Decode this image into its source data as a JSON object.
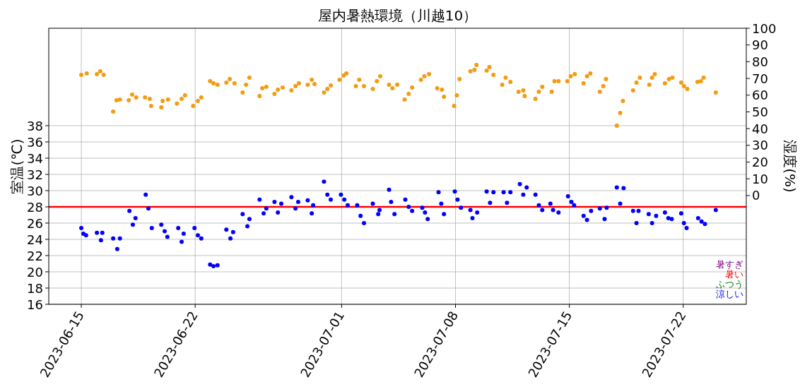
{
  "chart_data": {
    "type": "scatter",
    "title": "屋内暑熱環境（川越10）",
    "ylabel": "室温(℃)",
    "y2label": "湿度(%)",
    "xlim": [
      "2023-06-13",
      "2023-07-25T21:00"
    ],
    "xticks": [
      "2023-06-15",
      "2023-06-22",
      "2023-07-01",
      "2023-07-08",
      "2023-07-15",
      "2023-07-22"
    ],
    "ylim": [
      16,
      50
    ],
    "yticks": [
      16,
      18,
      20,
      22,
      24,
      26,
      28,
      30,
      32,
      34,
      36,
      38
    ],
    "y2lim": [
      -65,
      100
    ],
    "y2ticks": [
      0,
      10,
      20,
      30,
      40,
      50,
      60,
      70,
      80,
      90,
      100
    ],
    "grid": true,
    "marker": "circle",
    "ref_lines": [
      {
        "axis": "y",
        "value": 28,
        "color": "#ff0000",
        "line_style": "solid"
      }
    ],
    "annotations": [
      "暑すぎ",
      "暑い",
      "ふつう",
      "涼しい"
    ],
    "series": [
      {
        "color": "#0000ff",
        "x": [
          "2023-06-15T00:00",
          "2023-06-15T03:00",
          "2023-06-15T07:00",
          "2023-06-15T23:00",
          "2023-06-16T05:00",
          "2023-06-16T07:00",
          "2023-06-16T23:00",
          "2023-06-17T05:00",
          "2023-06-17T09:00",
          "2023-06-17T23:00",
          "2023-06-18T04:00",
          "2023-06-18T08:00",
          "2023-06-18T23:00",
          "2023-06-19T03:00",
          "2023-06-19T08:00",
          "2023-06-19T22:00",
          "2023-06-20T03:00",
          "2023-06-20T07:00",
          "2023-06-20T23:00",
          "2023-06-21T04:00",
          "2023-06-21T07:00",
          "2023-06-21T23:00",
          "2023-06-22T04:00",
          "2023-06-22T09:00",
          "2023-06-22T22:00",
          "2023-06-23T03:00",
          "2023-06-23T09:00",
          "2023-06-23T22:00",
          "2023-06-24T04:00",
          "2023-06-24T08:00",
          "2023-06-24T22:00",
          "2023-06-25T05:00",
          "2023-06-25T08:00",
          "2023-06-25T23:00",
          "2023-06-26T05:00",
          "2023-06-26T09:00",
          "2023-06-26T21:00",
          "2023-06-27T02:00",
          "2023-06-27T07:00",
          "2023-06-27T22:00",
          "2023-06-28T04:00",
          "2023-06-28T08:00",
          "2023-06-28T22:00",
          "2023-06-29T04:00",
          "2023-06-29T06:00",
          "2023-06-29T22:00",
          "2023-06-30T03:00",
          "2023-06-30T08:00",
          "2023-06-30T23:00",
          "2023-07-01T04:00",
          "2023-07-01T09:00",
          "2023-07-01T23:00",
          "2023-07-02T04:00",
          "2023-07-02T09:00",
          "2023-07-02T22:00",
          "2023-07-03T06:00",
          "2023-07-03T08:00",
          "2023-07-03T22:00",
          "2023-07-04T01:00",
          "2023-07-04T06:00",
          "2023-07-04T22:00",
          "2023-07-05T03:00",
          "2023-07-05T08:00",
          "2023-07-05T23:00",
          "2023-07-06T03:00",
          "2023-07-06T07:00",
          "2023-07-06T23:00",
          "2023-07-07T03:00",
          "2023-07-07T07:00",
          "2023-07-07T23:00",
          "2023-07-08T03:00",
          "2023-07-08T08:00",
          "2023-07-08T22:00",
          "2023-07-09T01:00",
          "2023-07-09T08:00",
          "2023-07-09T22:00",
          "2023-07-10T03:00",
          "2023-07-10T08:00",
          "2023-07-10T23:00",
          "2023-07-11T04:00",
          "2023-07-11T09:00",
          "2023-07-11T23:00",
          "2023-07-12T04:00",
          "2023-07-12T09:00",
          "2023-07-12T22:00",
          "2023-07-13T03:00",
          "2023-07-13T08:00",
          "2023-07-13T20:00",
          "2023-07-14T00:00",
          "2023-07-14T08:00",
          "2023-07-14T22:00",
          "2023-07-15T03:00",
          "2023-07-15T07:00",
          "2023-07-15T21:00",
          "2023-07-16T02:00",
          "2023-07-16T08:00",
          "2023-07-16T21:00",
          "2023-07-17T04:00",
          "2023-07-17T07:00",
          "2023-07-17T22:00",
          "2023-07-18T03:00",
          "2023-07-18T08:00",
          "2023-07-18T22:00",
          "2023-07-19T03:00",
          "2023-07-19T06:00",
          "2023-07-19T21:00",
          "2023-07-20T02:00",
          "2023-07-20T08:00",
          "2023-07-20T21:00",
          "2023-07-21T02:00",
          "2023-07-21T07:00",
          "2023-07-21T21:00",
          "2023-07-22T01:00",
          "2023-07-22T05:00",
          "2023-07-22T22:00",
          "2023-07-23T03:00",
          "2023-07-23T08:00",
          "2023-07-24T00:00"
        ],
        "values": [
          25.4,
          24.7,
          24.5,
          24.8,
          23.9,
          24.8,
          24.1,
          22.8,
          24.1,
          27.5,
          25.8,
          26.6,
          29.5,
          27.8,
          25.4,
          25.8,
          25.0,
          24.3,
          25.4,
          23.7,
          24.7,
          25.4,
          24.5,
          24.1,
          20.9,
          20.7,
          20.8,
          25.2,
          24.1,
          24.9,
          27.1,
          25.6,
          26.5,
          28.9,
          27.2,
          27.8,
          28.6,
          27.3,
          28.4,
          29.2,
          27.8,
          28.6,
          28.8,
          27.2,
          28.2,
          31.1,
          29.5,
          28.9,
          29.5,
          28.9,
          28.2,
          28.2,
          26.9,
          26.0,
          28.4,
          27.1,
          27.6,
          30.1,
          28.6,
          27.1,
          28.9,
          28.0,
          27.5,
          27.9,
          27.3,
          26.5,
          29.8,
          28.4,
          27.1,
          29.9,
          28.9,
          27.9,
          27.6,
          26.6,
          27.3,
          29.9,
          28.5,
          29.8,
          29.8,
          28.5,
          29.8,
          30.8,
          29.5,
          30.4,
          29.5,
          28.2,
          27.6,
          28.4,
          27.6,
          27.3,
          29.3,
          28.6,
          28.2,
          26.9,
          26.4,
          27.5,
          27.8,
          26.5,
          27.9,
          30.4,
          28.4,
          30.3,
          27.5,
          26.0,
          27.5,
          27.1,
          26.0,
          26.9,
          27.3,
          26.6,
          26.5,
          27.2,
          26.0,
          25.4,
          26.6,
          26.2,
          25.9,
          27.6
        ]
      },
      {
        "color": "#f39c12",
        "axis": "y2",
        "x": [
          "2023-06-15T00:00",
          "2023-06-15T08:00",
          "2023-06-15T23:00",
          "2023-06-16T04:00",
          "2023-06-16T09:00",
          "2023-06-16T23:00",
          "2023-06-17T04:00",
          "2023-06-17T09:00",
          "2023-06-17T22:00",
          "2023-06-18T03:00",
          "2023-06-18T09:00",
          "2023-06-18T22:00",
          "2023-06-19T05:00",
          "2023-06-19T07:00",
          "2023-06-19T22:00",
          "2023-06-20T00:00",
          "2023-06-20T08:00",
          "2023-06-20T21:00",
          "2023-06-21T04:00",
          "2023-06-21T09:00",
          "2023-06-21T21:00",
          "2023-06-22T04:00",
          "2023-06-22T09:00",
          "2023-06-22T22:00",
          "2023-06-23T03:00",
          "2023-06-23T09:00",
          "2023-06-23T22:00",
          "2023-06-24T03:00",
          "2023-06-24T10:00",
          "2023-06-24T22:00",
          "2023-06-25T03:00",
          "2023-06-25T08:00",
          "2023-06-25T23:00",
          "2023-06-26T03:00",
          "2023-06-26T09:00",
          "2023-06-26T21:00",
          "2023-06-27T02:00",
          "2023-06-27T09:00",
          "2023-06-27T22:00",
          "2023-06-28T04:00",
          "2023-06-28T09:00",
          "2023-06-28T22:00",
          "2023-06-29T04:00",
          "2023-06-29T08:00",
          "2023-06-29T22:00",
          "2023-06-30T03:00",
          "2023-06-30T08:00",
          "2023-06-30T21:00",
          "2023-07-01T03:00",
          "2023-07-01T07:00",
          "2023-07-01T21:00",
          "2023-07-02T02:00",
          "2023-07-02T09:00",
          "2023-07-02T22:00",
          "2023-07-03T04:00",
          "2023-07-03T09:00",
          "2023-07-03T22:00",
          "2023-07-04T03:00",
          "2023-07-04T10:00",
          "2023-07-04T21:00",
          "2023-07-05T03:00",
          "2023-07-05T08:00",
          "2023-07-05T21:00",
          "2023-07-06T02:00",
          "2023-07-06T09:00",
          "2023-07-06T21:00",
          "2023-07-07T04:00",
          "2023-07-07T07:00",
          "2023-07-07T22:00",
          "2023-07-08T02:00",
          "2023-07-08T06:00",
          "2023-07-08T22:00",
          "2023-07-09T04:00",
          "2023-07-09T07:00",
          "2023-07-09T22:00",
          "2023-07-10T02:00",
          "2023-07-10T08:00",
          "2023-07-10T21:00",
          "2023-07-11T02:00",
          "2023-07-11T09:00",
          "2023-07-11T21:00",
          "2023-07-12T04:00",
          "2023-07-12T06:00",
          "2023-07-12T22:00",
          "2023-07-13T03:00",
          "2023-07-13T08:00",
          "2023-07-13T22:00",
          "2023-07-14T02:00",
          "2023-07-14T08:00",
          "2023-07-14T21:00",
          "2023-07-15T02:00",
          "2023-07-15T08:00",
          "2023-07-15T21:00",
          "2023-07-16T02:00",
          "2023-07-16T07:00",
          "2023-07-16T21:00",
          "2023-07-17T02:00",
          "2023-07-17T06:00",
          "2023-07-17T22:00",
          "2023-07-18T03:00",
          "2023-07-18T07:00",
          "2023-07-18T22:00",
          "2023-07-19T03:00",
          "2023-07-19T08:00",
          "2023-07-19T22:00",
          "2023-07-20T02:00",
          "2023-07-20T06:00",
          "2023-07-20T21:00",
          "2023-07-21T03:00",
          "2023-07-21T08:00",
          "2023-07-21T21:00",
          "2023-07-22T01:00",
          "2023-07-22T06:00",
          "2023-07-22T21:00",
          "2023-07-23T02:00",
          "2023-07-23T06:00",
          "2023-07-24T00:00"
        ],
        "values": [
          72.2,
          73.0,
          72.6,
          74.3,
          72.2,
          50.2,
          57.0,
          57.4,
          57.0,
          60.3,
          58.6,
          58.6,
          57.8,
          53.6,
          52.7,
          56.5,
          57.4,
          54.9,
          57.8,
          59.9,
          53.6,
          56.5,
          58.6,
          68.4,
          67.1,
          66.2,
          67.5,
          69.6,
          67.1,
          61.6,
          66.2,
          70.5,
          59.5,
          64.1,
          65.0,
          60.8,
          63.3,
          64.6,
          62.9,
          65.4,
          67.1,
          66.2,
          69.2,
          66.7,
          61.6,
          63.7,
          65.8,
          69.2,
          71.7,
          73.0,
          65.4,
          69.2,
          65.4,
          63.7,
          68.4,
          71.3,
          66.2,
          64.1,
          66.2,
          57.4,
          60.8,
          64.6,
          69.2,
          71.3,
          72.6,
          64.1,
          63.3,
          59.1,
          53.6,
          59.9,
          69.6,
          74.3,
          75.1,
          78.1,
          74.7,
          76.8,
          72.2,
          66.2,
          70.5,
          67.9,
          62.0,
          62.9,
          59.5,
          57.8,
          62.0,
          65.0,
          62.0,
          68.4,
          68.4,
          68.4,
          71.3,
          72.6,
          67.1,
          71.3,
          73.0,
          62.0,
          65.4,
          69.6,
          41.8,
          49.4,
          56.5,
          62.9,
          67.5,
          70.5,
          66.2,
          70.5,
          72.6,
          67.1,
          69.6,
          70.5,
          67.5,
          65.4,
          63.7,
          67.9,
          68.4,
          70.5,
          61.6
        ]
      }
    ]
  }
}
